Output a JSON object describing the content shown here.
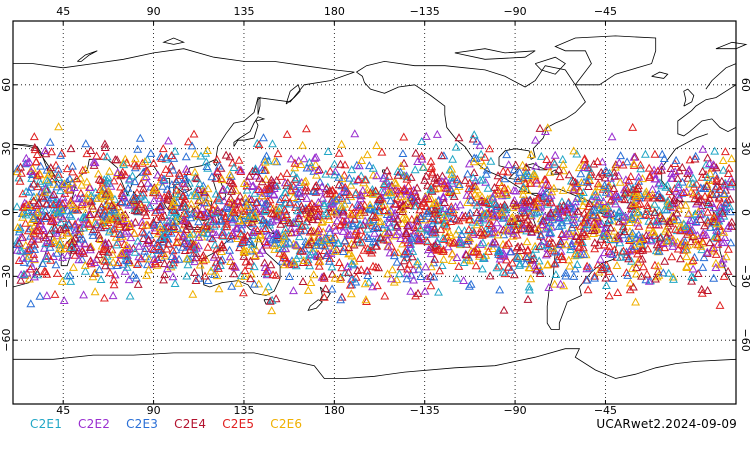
{
  "legend": [
    {
      "id": "c2e1",
      "label": "C2E1",
      "color": "#22a7c6"
    },
    {
      "id": "c2e2",
      "label": "C2E2",
      "color": "#9a2fd0"
    },
    {
      "id": "c2e3",
      "label": "C2E3",
      "color": "#2a6fd6"
    },
    {
      "id": "c2e4",
      "label": "C2E4",
      "color": "#b3122e"
    },
    {
      "id": "c2e5",
      "label": "C2E5",
      "color": "#e02020"
    },
    {
      "id": "c2e6",
      "label": "C2E6",
      "color": "#f0b000"
    }
  ],
  "footer_label": "UCARwet2.2024-09-09",
  "map": {
    "projection": "equirectangular",
    "lon_range": [
      20,
      380
    ],
    "lat_range": [
      -90,
      90
    ],
    "lon_ticks": [
      {
        "value": 45,
        "label": "45"
      },
      {
        "value": 90,
        "label": "90"
      },
      {
        "value": 135,
        "label": "135"
      },
      {
        "value": 180,
        "label": "180"
      },
      {
        "value": 225,
        "label": "−135"
      },
      {
        "value": 270,
        "label": "−90"
      },
      {
        "value": 315,
        "label": "−45"
      }
    ],
    "lat_ticks": [
      {
        "value": 60,
        "label": "60"
      },
      {
        "value": 30,
        "label": "30"
      },
      {
        "value": 0,
        "label": "0"
      },
      {
        "value": -30,
        "label": "−30"
      },
      {
        "value": -60,
        "label": "−60"
      }
    ],
    "grid": "dotted",
    "marker": "triangle-outline",
    "observation_lat_band": [
      -50,
      45
    ]
  }
}
